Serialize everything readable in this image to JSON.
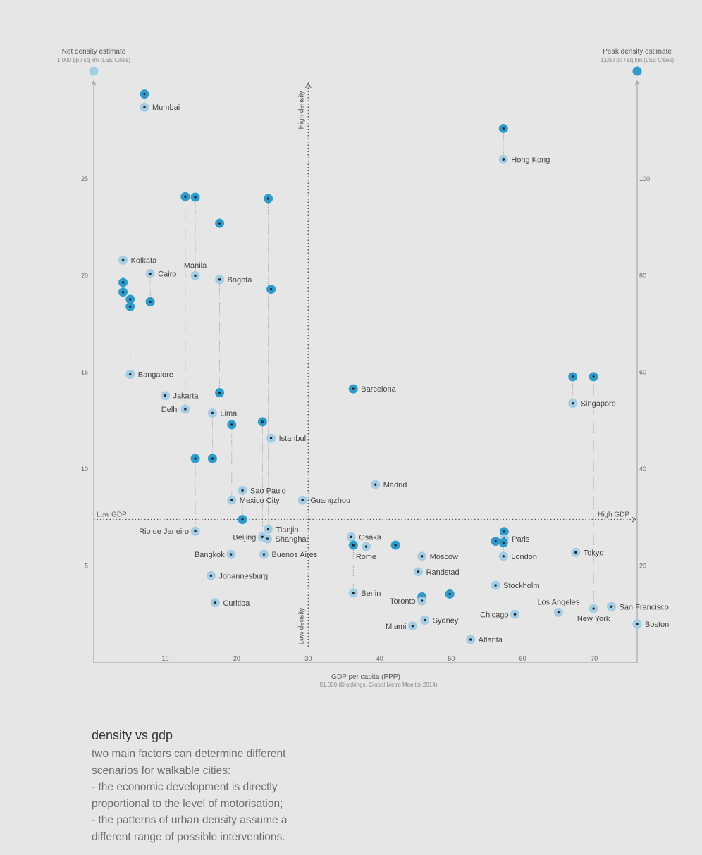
{
  "chart_data": {
    "type": "scatter",
    "x_axis": {
      "label": "GDP per capita (PPP)",
      "sublabel": "$1,000 (Brookings, Global Metro Monitor 2014)",
      "range": [
        0,
        76
      ],
      "ticks": [
        10,
        20,
        30,
        40,
        50,
        60,
        70
      ]
    },
    "y_left": {
      "label": "Net density estimate",
      "sublabel": "1,000 pp / sq km (LSE Cities)",
      "range": [
        0,
        30.2
      ],
      "ticks": [
        5,
        10,
        15,
        20,
        25
      ],
      "color": "#a4cde3"
    },
    "y_right": {
      "label": "Peak density estimate",
      "sublabel": "1,000 pp / sq km (LSE Cities)",
      "range": [
        0,
        120.8
      ],
      "ticks": [
        20,
        40,
        60,
        80,
        100
      ],
      "color": "#2f9bcb"
    },
    "quadrants": {
      "high_gdp": "High GDP",
      "low_gdp": "Low GDP",
      "high_density": "High density",
      "low_density": "Low density"
    },
    "divider": {
      "gdp": 30,
      "net_density": 7.4
    },
    "series": [
      {
        "name": "Net density estimate",
        "color": "#a4cde3"
      },
      {
        "name": "Peak density estimate",
        "color": "#2f9bcb"
      }
    ],
    "cities": [
      {
        "name": "Mumbai",
        "gdp": 7.1,
        "net": 28.7,
        "peak": 117.5,
        "label_pos": "right"
      },
      {
        "name": "Hong Kong",
        "gdp": 57.3,
        "net": 26.0,
        "peak": 110.4,
        "label_pos": "right"
      },
      {
        "name": "Kolkata",
        "gdp": 4.1,
        "net": 20.8,
        "peak": 78.6,
        "label_pos": "right"
      },
      {
        "name": "Cairo",
        "gdp": 7.9,
        "net": 20.1,
        "peak": 74.6,
        "label_pos": "right"
      },
      {
        "name": "Manila",
        "gdp": 14.2,
        "net": 20.0,
        "peak": 96.2,
        "label_pos": "above"
      },
      {
        "name": "Bogotà",
        "gdp": 17.6,
        "net": 19.8,
        "peak": 55.8,
        "label_pos": "right"
      },
      {
        "name": "Bangalore",
        "gdp": 5.1,
        "net": 14.9,
        "peak": 75.1,
        "label_pos": "right"
      },
      {
        "name": "Jakarta",
        "gdp": 10.0,
        "net": 13.8,
        "peak": null,
        "label_pos": "right"
      },
      {
        "name": "Delhi",
        "gdp": 12.8,
        "net": 13.1,
        "peak": 96.3,
        "label_pos": "left"
      },
      {
        "name": "Lima",
        "gdp": 16.6,
        "net": 12.9,
        "peak": 42.2,
        "label_pos": "right"
      },
      {
        "name": "Istanbul",
        "gdp": 24.8,
        "net": 11.6,
        "peak": 77.2,
        "label_pos": "right"
      },
      {
        "name": "Barcelona",
        "gdp": 36.3,
        "net": null,
        "peak": 56.6,
        "label_pos": "right"
      },
      {
        "name": "Singapore",
        "gdp": 67.0,
        "net": 13.4,
        "peak": 59.1,
        "label_pos": "right"
      },
      {
        "name": "Madrid",
        "gdp": 39.4,
        "net": 9.2,
        "peak": null,
        "label_pos": "right"
      },
      {
        "name": "Sao Paulo",
        "gdp": 20.8,
        "net": 8.9,
        "peak": 29.6,
        "label_pos": "right"
      },
      {
        "name": "Mexico City",
        "gdp": 19.3,
        "net": 8.4,
        "peak": 49.2,
        "label_pos": "right"
      },
      {
        "name": "Guangzhou",
        "gdp": 29.2,
        "net": 8.4,
        "peak": null,
        "label_pos": "right"
      },
      {
        "name": "Rio de Janeiro",
        "gdp": 14.2,
        "net": 6.8,
        "peak": 42.2,
        "label_pos": "left"
      },
      {
        "name": "Tianjin",
        "gdp": 24.4,
        "net": 6.9,
        "peak": 95.9,
        "label_pos": "right"
      },
      {
        "name": "Beijing",
        "gdp": 23.6,
        "net": 6.5,
        "peak": 49.8,
        "label_pos": "left"
      },
      {
        "name": "Shanghai",
        "gdp": 24.3,
        "net": 6.4,
        "peak": null,
        "label_pos": "right"
      },
      {
        "name": "Osaka",
        "gdp": 36.0,
        "net": 6.5,
        "peak": null,
        "label_pos": "right"
      },
      {
        "name": "Rome",
        "gdp": 38.1,
        "net": 6.0,
        "peak": null,
        "label_pos": "below"
      },
      {
        "name": "Paris",
        "gdp": 57.4,
        "net": 6.4,
        "peak": 27.1,
        "label_pos": "right"
      },
      {
        "name": "Bangkok",
        "gdp": 19.2,
        "net": 5.6,
        "peak": null,
        "label_pos": "left"
      },
      {
        "name": "Buenos Aires",
        "gdp": 23.8,
        "net": 5.6,
        "peak": null,
        "label_pos": "right"
      },
      {
        "name": "Moscow",
        "gdp": 45.9,
        "net": 5.5,
        "peak": null,
        "label_pos": "right"
      },
      {
        "name": "London",
        "gdp": 57.3,
        "net": 5.5,
        "peak": 24.8,
        "label_pos": "right"
      },
      {
        "name": "Tokyo",
        "gdp": 67.4,
        "net": 5.7,
        "peak": null,
        "label_pos": "right"
      },
      {
        "name": "Randstad",
        "gdp": 45.4,
        "net": 4.7,
        "peak": null,
        "label_pos": "right"
      },
      {
        "name": "Johannesburg",
        "gdp": 16.4,
        "net": 4.5,
        "peak": null,
        "label_pos": "right"
      },
      {
        "name": "Stockholm",
        "gdp": 56.2,
        "net": 4.0,
        "peak": null,
        "label_pos": "right"
      },
      {
        "name": "Berlin",
        "gdp": 36.3,
        "net": 3.6,
        "peak": 24.3,
        "label_pos": "right"
      },
      {
        "name": "Toronto",
        "gdp": 45.9,
        "net": 3.2,
        "peak": 13.6,
        "label_pos": "left"
      },
      {
        "name": "Curitiba",
        "gdp": 17.0,
        "net": 3.1,
        "peak": null,
        "label_pos": "right"
      },
      {
        "name": "Los Angeles",
        "gdp": 65.0,
        "net": 2.6,
        "peak": null,
        "label_pos": "above"
      },
      {
        "name": "New York",
        "gdp": 69.9,
        "net": 2.8,
        "peak": 59.1,
        "label_pos": "below"
      },
      {
        "name": "San Francisco",
        "gdp": 72.4,
        "net": 2.9,
        "peak": null,
        "label_pos": "right"
      },
      {
        "name": "Chicago",
        "gdp": 58.9,
        "net": 2.5,
        "peak": null,
        "label_pos": "left"
      },
      {
        "name": "Sydney",
        "gdp": 46.3,
        "net": 2.2,
        "peak": null,
        "label_pos": "right"
      },
      {
        "name": "Miami",
        "gdp": 44.6,
        "net": 1.9,
        "peak": null,
        "label_pos": "left"
      },
      {
        "name": "Boston",
        "gdp": 76.0,
        "net": 2.0,
        "peak": null,
        "label_pos": "right"
      },
      {
        "name": "Atlanta",
        "gdp": 52.7,
        "net": 1.2,
        "peak": null,
        "label_pos": "right"
      }
    ],
    "extra_peaks": [
      {
        "gdp": 4.1,
        "peak": 76.6
      },
      {
        "gdp": 5.1,
        "peak": 73.6
      },
      {
        "gdp": 17.6,
        "peak": 90.8
      },
      {
        "gdp": 12.8,
        "peak": null
      },
      {
        "gdp": 42.2,
        "peak": 24.3
      },
      {
        "gdp": 49.8,
        "peak": 14.2
      },
      {
        "gdp": 56.2,
        "peak": 25.1
      },
      {
        "gdp": 57.3,
        "peak": null
      }
    ]
  },
  "caption": {
    "title": "density vs gdp",
    "lines": [
      "two main factors can determine different",
      "scenarios for walkable cities:",
      "- the economic development is directly",
      "proportional to the level of motorisation;",
      "- the patterns of urban density assume a",
      "different range of possible interventions."
    ]
  }
}
